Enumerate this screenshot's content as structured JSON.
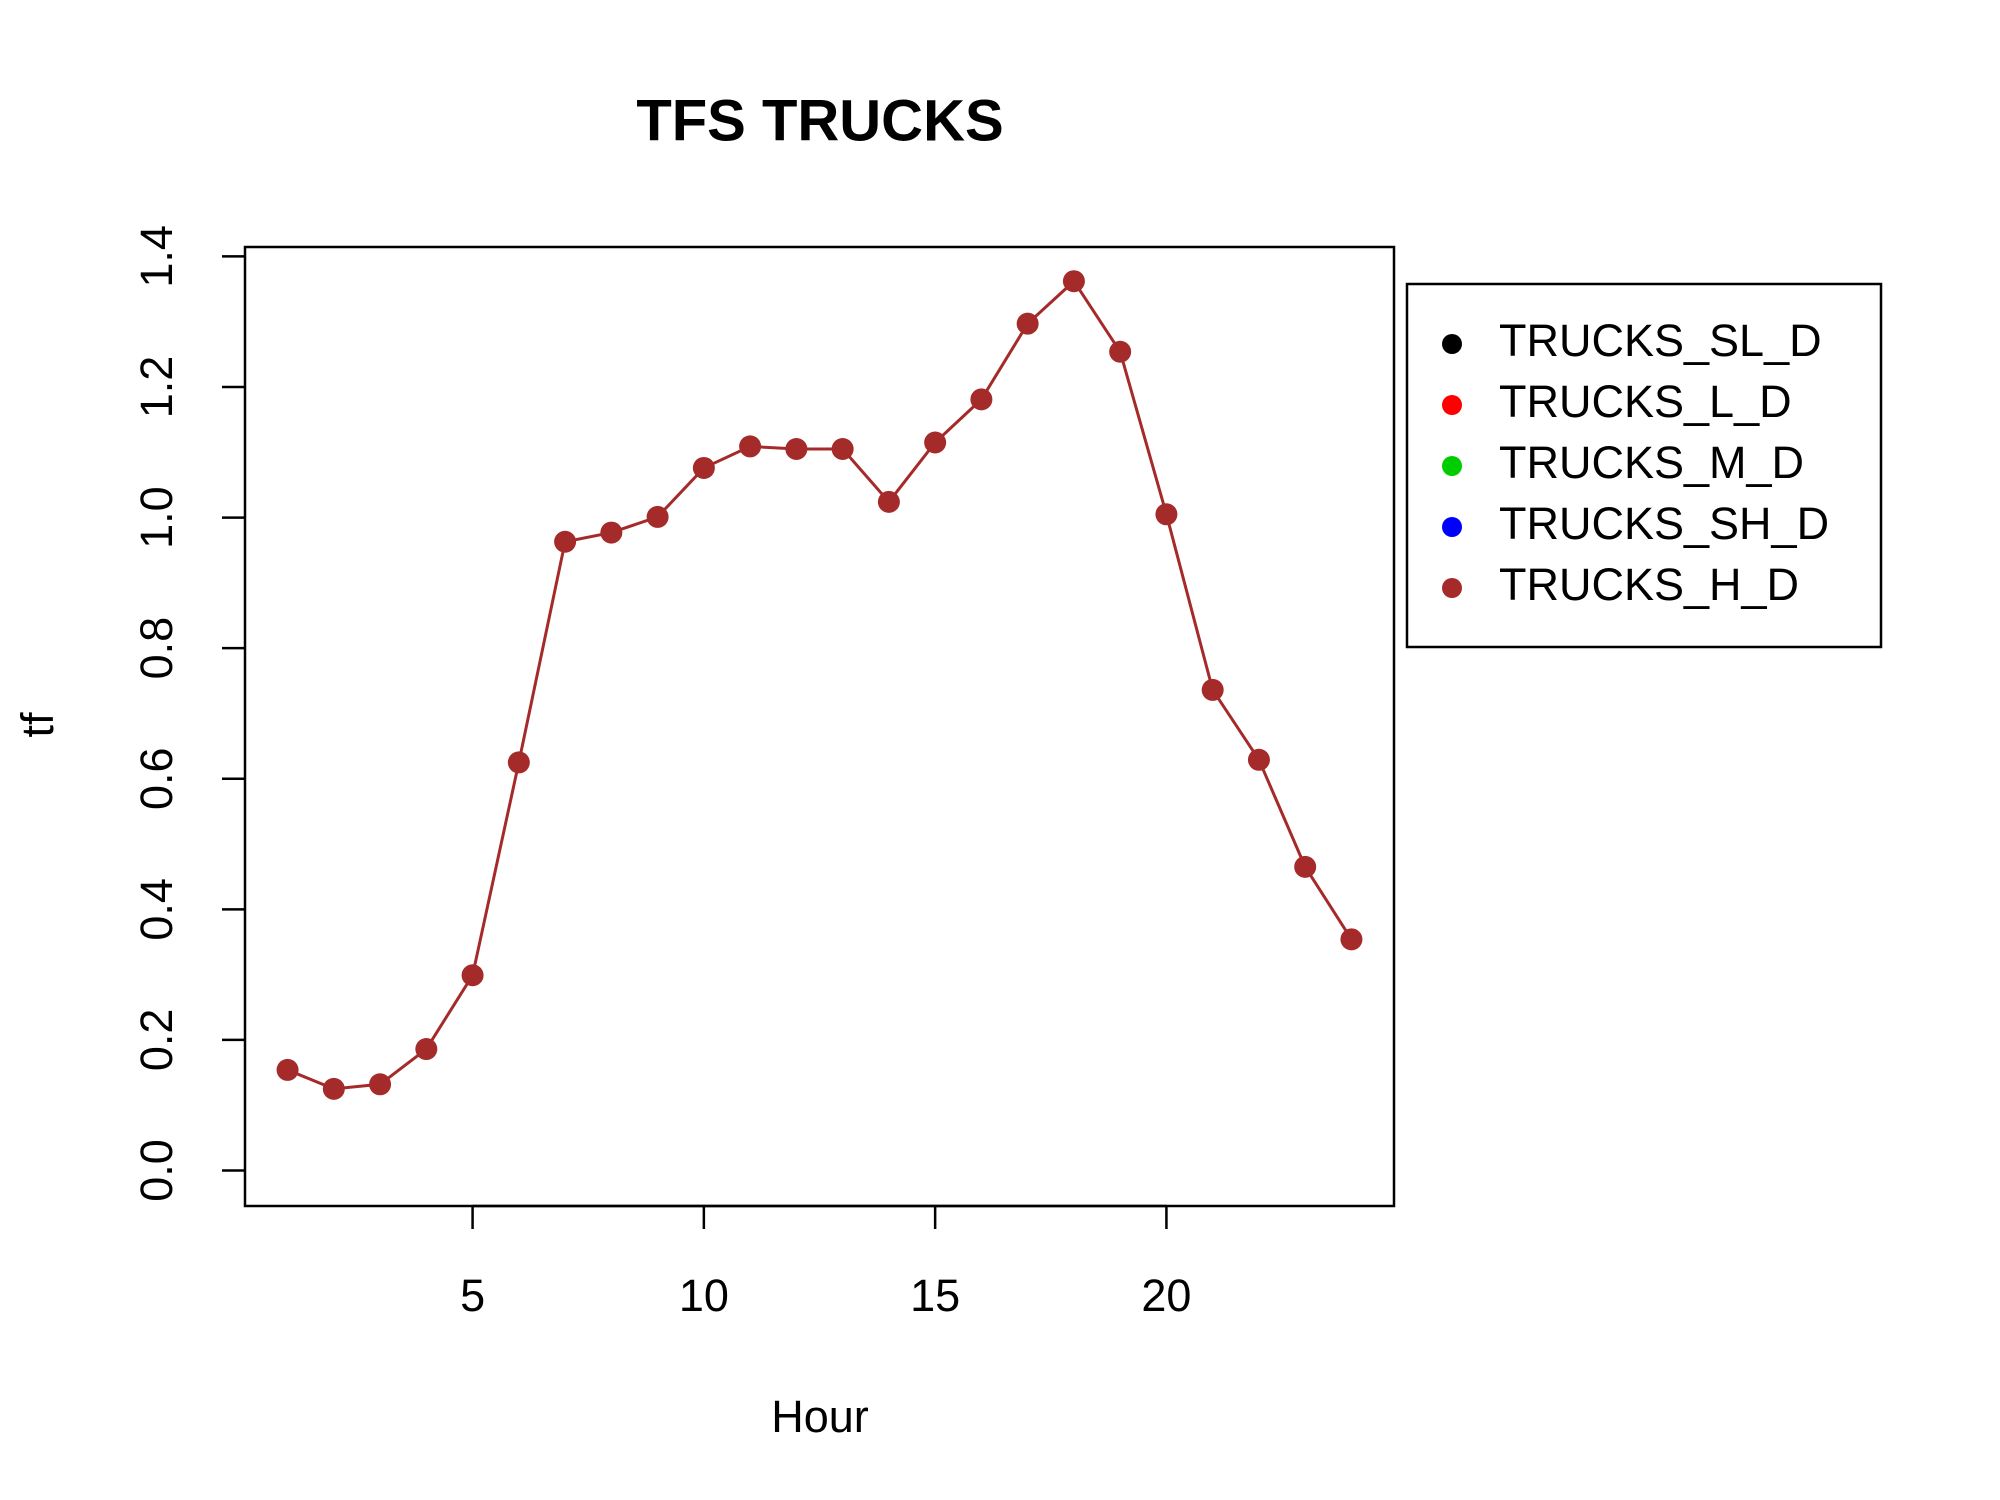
{
  "chart_data": {
    "type": "line",
    "title": "TFS TRUCKS",
    "x_label": "Hour",
    "y_label": "tf",
    "x": [
      1,
      2,
      3,
      4,
      5,
      6,
      7,
      8,
      9,
      10,
      11,
      12,
      13,
      14,
      15,
      16,
      17,
      18,
      19,
      20,
      21,
      22,
      23,
      24
    ],
    "series": [
      {
        "name": "TRUCKS_SL_D",
        "color": "#000000"
      },
      {
        "name": "TRUCKS_L_D",
        "color": "#ff0000"
      },
      {
        "name": "TRUCKS_M_D",
        "color": "#00cd00"
      },
      {
        "name": "TRUCKS_SH_D",
        "color": "#0000ff"
      },
      {
        "name": "TRUCKS_H_D",
        "color": "#a52a2a",
        "values": [
          0.154,
          0.125,
          0.132,
          0.186,
          0.299,
          0.625,
          0.963,
          0.977,
          1.001,
          1.076,
          1.109,
          1.105,
          1.105,
          1.024,
          1.115,
          1.181,
          1.297,
          1.362,
          1.254,
          1.005,
          0.736,
          0.629,
          0.465,
          0.354
        ]
      }
    ],
    "xlim": [
      0.08,
      24.92
    ],
    "xticks": [
      5,
      10,
      15,
      20
    ],
    "ylim": [
      -0.0544,
      1.4144
    ],
    "yticks": [
      {
        "value": 0,
        "label": "0.0"
      },
      0.2,
      0.4,
      0.6,
      0.8,
      {
        "value": 1,
        "label": "1.0"
      },
      1.2,
      1.4
    ],
    "legend": "outside-top-right"
  }
}
